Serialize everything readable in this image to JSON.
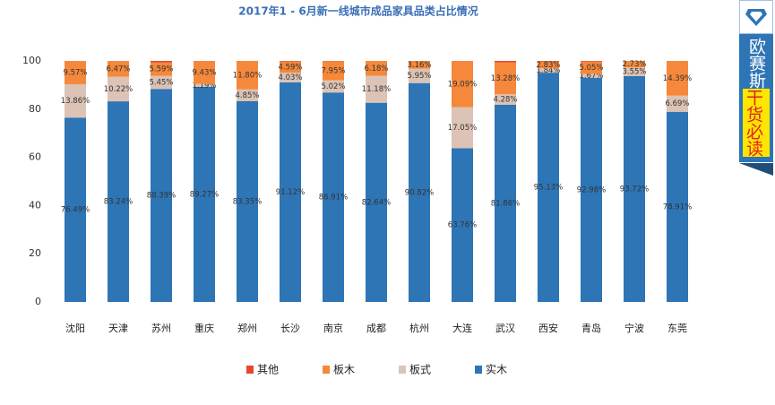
{
  "chart_data": {
    "type": "stacked_bar",
    "title": "2017年1 - 6月新一线城市成品家具品类占比情况",
    "categories": [
      "沈阳",
      "天津",
      "苏州",
      "重庆",
      "郑州",
      "长沙",
      "南京",
      "成都",
      "杭州",
      "大连",
      "武汉",
      "西安",
      "青岛",
      "宁波",
      "东莞"
    ],
    "series": [
      {
        "name": "其他",
        "color": "#e8452c",
        "values": [
          0.08,
          0.07,
          0.57,
          0.11,
          0,
          0.26,
          0.12,
          0,
          0.07,
          0.1,
          0.58,
          0.2,
          0.3,
          0,
          0.01
        ]
      },
      {
        "name": "板木",
        "color": "#f5883a",
        "values": [
          9.57,
          6.47,
          5.59,
          9.43,
          11.8,
          4.59,
          7.95,
          6.18,
          3.16,
          19.09,
          13.28,
          2.83,
          5.05,
          2.73,
          14.39
        ],
        "value_labels": [
          "9.57%",
          "6.47%",
          "5.59%",
          "9.43%",
          "11.80%",
          "4.59%",
          "7.95%",
          "6.18%",
          "3.16%",
          "19.09%",
          "13.28%",
          "2.83%",
          "5.05%",
          "2.73%",
          "14.39%"
        ]
      },
      {
        "name": "板式",
        "color": "#dcc3b5",
        "values": [
          13.86,
          10.22,
          5.45,
          1.19,
          4.85,
          4.03,
          5.02,
          11.18,
          5.95,
          17.05,
          4.28,
          1.84,
          1.67,
          3.55,
          6.69
        ],
        "value_labels": [
          "13.86%",
          "10.22%",
          "5.45%",
          "1.19%",
          "4.85%",
          "4.03%",
          "5.02%",
          "11.18%",
          "5.95%",
          "17.05%",
          "4.28%",
          "1.84%",
          "1.67%",
          "3.55%",
          "6.69%"
        ]
      },
      {
        "name": "实木",
        "color": "#2e75b6",
        "values": [
          76.49,
          83.24,
          88.39,
          89.27,
          83.35,
          91.12,
          86.91,
          82.64,
          90.82,
          63.76,
          81.86,
          95.13,
          92.98,
          93.72,
          78.91
        ],
        "value_labels": [
          "76.49%",
          "83.24%",
          "88.39%",
          "89.27%",
          "83.35%",
          "91.12%",
          "86.91%",
          "82.64%",
          "90.82%",
          "63.76%",
          "81.86%",
          "95.13%",
          "92.98%",
          "93.72%",
          "78.91%"
        ]
      }
    ],
    "ylim": [
      0,
      100
    ],
    "yticks": [
      0,
      20,
      40,
      60,
      80,
      100
    ],
    "grid": false,
    "legend": "bottom"
  },
  "banner": {
    "brand": "欧赛斯",
    "tagline": "干货必读"
  }
}
